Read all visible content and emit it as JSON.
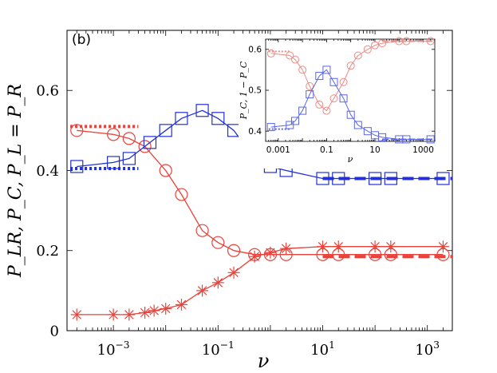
{
  "panel_label": "(b)",
  "colors": {
    "red": "#e8423a",
    "blue": "#2230d6",
    "red_light": "#f08a84",
    "blue_light": "#5a66e6",
    "axis": "#000000"
  },
  "chart_data": [
    {
      "id": "main",
      "type": "line",
      "x_scale": "log",
      "xlim": [
        0.00013,
        3000
      ],
      "ylim": [
        0,
        0.75
      ],
      "xlabel": "ν",
      "ylabel": "P_LR, P_C, P_L = P_R",
      "xticks": [
        {
          "value": 0.001,
          "label_base": "10",
          "label_exp": "−3"
        },
        {
          "value": 0.1,
          "label_base": "10",
          "label_exp": "−1"
        },
        {
          "value": 10,
          "label_base": "10",
          "label_exp": "1"
        },
        {
          "value": 1000,
          "label_base": "10",
          "label_exp": "3"
        }
      ],
      "yticks": [
        {
          "value": 0,
          "label": "0"
        },
        {
          "value": 0.2,
          "label": "0.2"
        },
        {
          "value": 0.4,
          "label": "0.4"
        },
        {
          "value": 0.6,
          "label": "0.6"
        }
      ],
      "series": [
        {
          "name": "P_LR",
          "color_key": "red",
          "marker": "circle",
          "x": [
            0.0002,
            0.001,
            0.002,
            0.004,
            0.01,
            0.02,
            0.05,
            0.1,
            0.2,
            0.5,
            1,
            2,
            10,
            20,
            100,
            200,
            2000
          ],
          "y": [
            0.5,
            0.49,
            0.48,
            0.46,
            0.4,
            0.34,
            0.25,
            0.22,
            0.2,
            0.19,
            0.19,
            0.19,
            0.19,
            0.19,
            0.19,
            0.19,
            0.19
          ],
          "limit_low": {
            "x": [
              0.00015,
              0.003
            ],
            "y": 0.51
          },
          "limit_high": {
            "x": [
              10,
              3000
            ],
            "y": 0.185
          }
        },
        {
          "name": "P_C",
          "color_key": "blue",
          "marker": "square",
          "x": [
            0.0002,
            0.001,
            0.002,
            0.005,
            0.01,
            0.02,
            0.05,
            0.1,
            0.2,
            0.5,
            1,
            2,
            10,
            20,
            100,
            200,
            2000
          ],
          "y": [
            0.41,
            0.42,
            0.43,
            0.47,
            0.5,
            0.53,
            0.55,
            0.53,
            0.5,
            0.43,
            0.41,
            0.4,
            0.38,
            0.38,
            0.38,
            0.38,
            0.38
          ],
          "limit_low": {
            "x": [
              0.00015,
              0.003
            ],
            "y": 0.405
          },
          "limit_high": {
            "x": [
              10,
              3000
            ],
            "y": 0.38
          }
        },
        {
          "name": "P_L = P_R",
          "color_key": "red",
          "marker": "star",
          "x": [
            0.0002,
            0.001,
            0.002,
            0.004,
            0.006,
            0.01,
            0.02,
            0.05,
            0.1,
            0.2,
            0.5,
            1,
            2,
            10,
            20,
            100,
            200,
            2000
          ],
          "y": [
            0.04,
            0.04,
            0.04,
            0.045,
            0.05,
            0.055,
            0.065,
            0.1,
            0.12,
            0.145,
            0.185,
            0.195,
            0.205,
            0.21,
            0.21,
            0.21,
            0.21,
            0.21
          ]
        }
      ]
    },
    {
      "id": "inset",
      "type": "line",
      "x_scale": "log",
      "xlim": [
        0.0003,
        3000
      ],
      "ylim": [
        0.375,
        0.625
      ],
      "xlabel": "ν",
      "ylabel": "P_C, 1 − P_C",
      "xticks": [
        {
          "value": 0.001,
          "label": "0.001"
        },
        {
          "value": 0.1,
          "label": "0.1"
        },
        {
          "value": 10,
          "label": "10"
        },
        {
          "value": 1000,
          "label": "1000"
        }
      ],
      "yticks": [
        {
          "value": 0.4,
          "label": "0.4"
        },
        {
          "value": 0.5,
          "label": "0.5"
        },
        {
          "value": 0.6,
          "label": "0.6"
        }
      ],
      "series": [
        {
          "name": "1 − P_C",
          "color_key": "red_light",
          "marker": "circle",
          "x": [
            0.0005,
            0.003,
            0.005,
            0.01,
            0.02,
            0.05,
            0.1,
            0.2,
            0.5,
            1,
            2,
            5,
            10,
            20,
            100,
            200,
            2000
          ],
          "y": [
            0.59,
            0.585,
            0.575,
            0.55,
            0.51,
            0.465,
            0.45,
            0.48,
            0.52,
            0.56,
            0.585,
            0.6,
            0.61,
            0.615,
            0.62,
            0.62,
            0.62
          ],
          "limit_low": {
            "x": [
              0.0004,
              0.003
            ],
            "y": 0.595
          },
          "limit_high": {
            "x": [
              20,
              3000
            ],
            "y": 0.62
          }
        },
        {
          "name": "P_C",
          "color_key": "blue_light",
          "marker": "square",
          "x": [
            0.0005,
            0.003,
            0.005,
            0.01,
            0.02,
            0.05,
            0.1,
            0.2,
            0.5,
            1,
            2,
            5,
            10,
            20,
            100,
            200,
            2000
          ],
          "y": [
            0.41,
            0.415,
            0.425,
            0.45,
            0.49,
            0.535,
            0.55,
            0.52,
            0.48,
            0.44,
            0.415,
            0.4,
            0.39,
            0.385,
            0.38,
            0.38,
            0.38
          ],
          "limit_low": {
            "x": [
              0.0004,
              0.003
            ],
            "y": 0.405
          },
          "limit_high": {
            "x": [
              20,
              3000
            ],
            "y": 0.38
          }
        }
      ]
    }
  ]
}
